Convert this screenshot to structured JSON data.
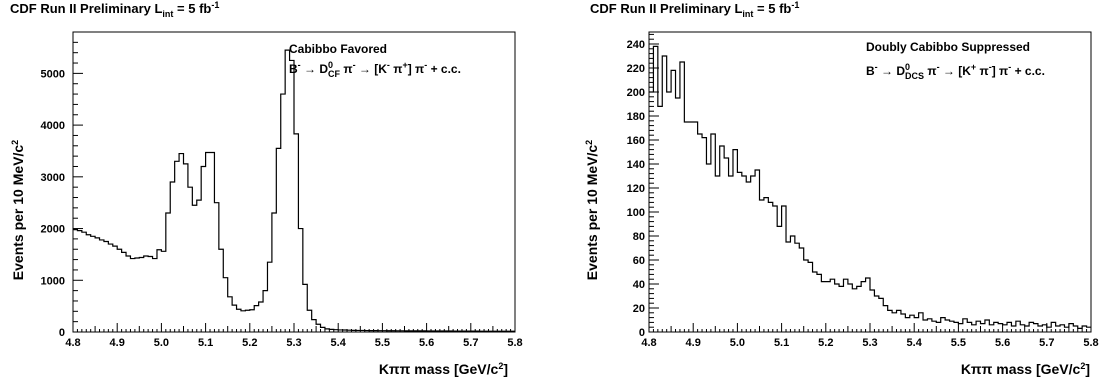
{
  "chart_data": [
    {
      "type": "histogram",
      "title": "CDF Run II Preliminary L",
      "title_sub": "int",
      "title_tail": " = 5 fb",
      "title_sup": "-1",
      "xlabel": "Kππ mass [GeV/c",
      "xlabel_sup": "2",
      "xlabel_tail": "]",
      "ylabel": "Events per 10 MeV/c",
      "ylabel_sup": "2",
      "xlim": [
        4.8,
        5.8
      ],
      "ylim": [
        0,
        5800
      ],
      "xticks": [
        "4.8",
        "4.9",
        "5.0",
        "5.1",
        "5.2",
        "5.3",
        "5.4",
        "5.5",
        "5.6",
        "5.7",
        "5.8"
      ],
      "yticks": [
        "0",
        "1000",
        "2000",
        "3000",
        "4000",
        "5000"
      ],
      "legend_title": "Cabibbo Favored",
      "legend_decay": "B⁻ → D⁰CF π⁻ → [K⁻ π⁺] π⁻ + c.c.",
      "bin_width": 0.01,
      "x_start": 4.8,
      "values": [
        1980,
        1960,
        1930,
        1880,
        1850,
        1820,
        1780,
        1750,
        1700,
        1660,
        1600,
        1540,
        1470,
        1420,
        1430,
        1440,
        1470,
        1460,
        1420,
        1590,
        1560,
        2300,
        2900,
        3300,
        3450,
        3250,
        2800,
        2450,
        2550,
        3200,
        3470,
        3470,
        2500,
        1600,
        1050,
        680,
        520,
        440,
        410,
        420,
        430,
        510,
        580,
        800,
        1350,
        2300,
        3550,
        4600,
        5450,
        5250,
        3830,
        2000,
        920,
        420,
        240,
        150,
        90,
        60,
        50,
        45,
        40,
        38,
        35,
        32,
        30,
        30,
        28,
        27,
        26,
        25,
        25,
        24,
        24,
        23,
        23,
        22,
        22,
        22,
        21,
        21,
        20,
        20,
        20,
        19,
        19,
        19,
        18,
        18,
        18,
        17,
        17,
        17,
        16,
        16,
        16,
        16,
        15,
        15,
        15,
        15
      ]
    },
    {
      "type": "histogram",
      "title": "CDF Run II Preliminary L",
      "title_sub": "int",
      "title_tail": " = 5 fb",
      "title_sup": "-1",
      "xlabel": "Kππ mass [GeV/c",
      "xlabel_sup": "2",
      "xlabel_tail": "]",
      "ylabel": "Events per 10 MeV/c",
      "ylabel_sup": "2",
      "xlim": [
        4.8,
        5.8
      ],
      "ylim": [
        0,
        250
      ],
      "xticks": [
        "4.8",
        "4.9",
        "5.0",
        "5.1",
        "5.2",
        "5.3",
        "5.4",
        "5.5",
        "5.6",
        "5.7",
        "5.8"
      ],
      "yticks": [
        "0",
        "20",
        "40",
        "60",
        "80",
        "100",
        "120",
        "140",
        "160",
        "180",
        "200",
        "220",
        "240"
      ],
      "legend_title": "Doubly Cabibbo Suppressed",
      "legend_decay": "B⁻ → D⁰DCS π⁻ → [K⁺ π⁻] π⁻ + c.c.",
      "bin_width": 0.01,
      "x_start": 4.8,
      "values": [
        200,
        238,
        188,
        230,
        200,
        218,
        195,
        225,
        175,
        175,
        175,
        165,
        162,
        140,
        165,
        130,
        155,
        145,
        130,
        152,
        133,
        130,
        125,
        130,
        135,
        110,
        112,
        108,
        105,
        88,
        105,
        75,
        80,
        74,
        70,
        60,
        58,
        50,
        48,
        42,
        42,
        44,
        40,
        38,
        44,
        40,
        36,
        38,
        42,
        45,
        35,
        30,
        28,
        22,
        18,
        16,
        18,
        15,
        12,
        14,
        12,
        16,
        10,
        11,
        9,
        8,
        12,
        10,
        9,
        8,
        7,
        11,
        8,
        6,
        9,
        7,
        10,
        6,
        8,
        7,
        6,
        8,
        5,
        9,
        6,
        5,
        8,
        7,
        5,
        6,
        4,
        8,
        5,
        6,
        4,
        7,
        5,
        3,
        5,
        4
      ]
    }
  ]
}
